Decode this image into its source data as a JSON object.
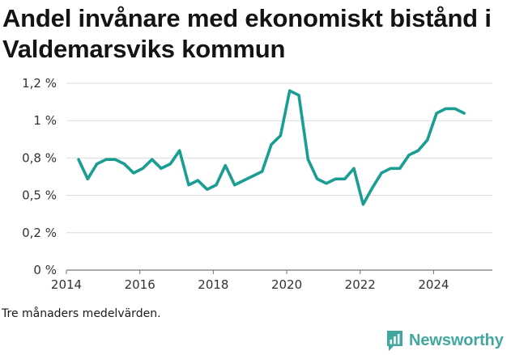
{
  "chart_data": {
    "type": "line",
    "title": "Andel invånare med ekonomiskt bistånd i Valdemarsviks kommun",
    "note": "Tre månaders medelvärden.",
    "brand": "Newsworthy",
    "line_color": "#1a9e92",
    "grid": true,
    "xlim": [
      2014,
      2025.6
    ],
    "ylim": [
      0,
      1.25
    ],
    "x_ticks": [
      2014,
      2016,
      2018,
      2020,
      2022,
      2024
    ],
    "y_ticks": [
      {
        "value": 0,
        "label": "0 %"
      },
      {
        "value": 0.25,
        "label": "0,2 %"
      },
      {
        "value": 0.5,
        "label": "0,5 %"
      },
      {
        "value": 0.75,
        "label": "0,8 %"
      },
      {
        "value": 1.0,
        "label": "1 %"
      },
      {
        "value": 1.25,
        "label": "1,2 %"
      }
    ],
    "series": [
      {
        "x": [
          2014.33,
          2014.58,
          2014.83,
          2015.08,
          2015.33,
          2015.58,
          2015.83,
          2016.08,
          2016.33,
          2016.58,
          2016.83,
          2017.08,
          2017.33,
          2017.58,
          2017.83,
          2018.08,
          2018.33,
          2018.58,
          2018.83,
          2019.08,
          2019.33,
          2019.58,
          2019.83,
          2020.08,
          2020.33,
          2020.58,
          2020.83,
          2021.08,
          2021.33,
          2021.58,
          2021.83,
          2022.08,
          2022.33,
          2022.58,
          2022.83,
          2023.08,
          2023.33,
          2023.58,
          2023.83,
          2024.08,
          2024.33,
          2024.58,
          2024.83
        ],
        "values": [
          0.74,
          0.61,
          0.71,
          0.74,
          0.74,
          0.71,
          0.65,
          0.68,
          0.74,
          0.68,
          0.71,
          0.8,
          0.57,
          0.6,
          0.54,
          0.57,
          0.7,
          0.57,
          0.6,
          0.63,
          0.66,
          0.84,
          0.9,
          1.2,
          1.17,
          0.74,
          0.61,
          0.58,
          0.61,
          0.61,
          0.68,
          0.44,
          0.55,
          0.65,
          0.68,
          0.68,
          0.77,
          0.8,
          0.87,
          1.05,
          1.08,
          1.08,
          1.05
        ]
      }
    ]
  }
}
